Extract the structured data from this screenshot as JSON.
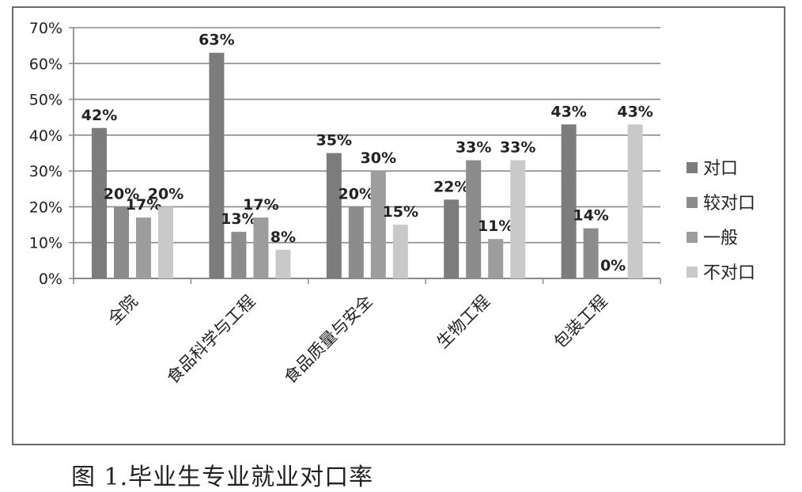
{
  "caption": "图 1.毕业生专业就业对口率",
  "chart_data": {
    "type": "bar",
    "categories": [
      "全院",
      "食品科学与工程",
      "食品质量与安全",
      "生物工程",
      "包装工程"
    ],
    "series": [
      {
        "name": "对口",
        "values": [
          42,
          63,
          35,
          22,
          43
        ],
        "labels": [
          "42%",
          "63%",
          "35%",
          "22%",
          "43%"
        ],
        "color": "#7c7c7c"
      },
      {
        "name": "较对口",
        "values": [
          20,
          13,
          20,
          33,
          14
        ],
        "labels": [
          "20%",
          "13%",
          "20%",
          "33%",
          "14%"
        ],
        "color": "#8c8c8c"
      },
      {
        "name": "一般",
        "values": [
          17,
          17,
          30,
          11,
          0
        ],
        "labels": [
          "17%",
          "17%",
          "30%",
          "11%",
          "0%"
        ],
        "color": "#9d9d9d"
      },
      {
        "name": "不对口",
        "values": [
          20,
          8,
          15,
          33,
          43
        ],
        "labels": [
          "20%",
          "8%",
          "15%",
          "33%",
          "43%"
        ],
        "color": "#c9c9c9"
      }
    ],
    "ylim": [
      0,
      70
    ],
    "yticks": [
      0,
      10,
      20,
      30,
      40,
      50,
      60,
      70
    ],
    "ytick_labels": [
      "0%",
      "10%",
      "20%",
      "30%",
      "40%",
      "50%",
      "60%",
      "70%"
    ],
    "grid": true,
    "legend_position": "right"
  }
}
